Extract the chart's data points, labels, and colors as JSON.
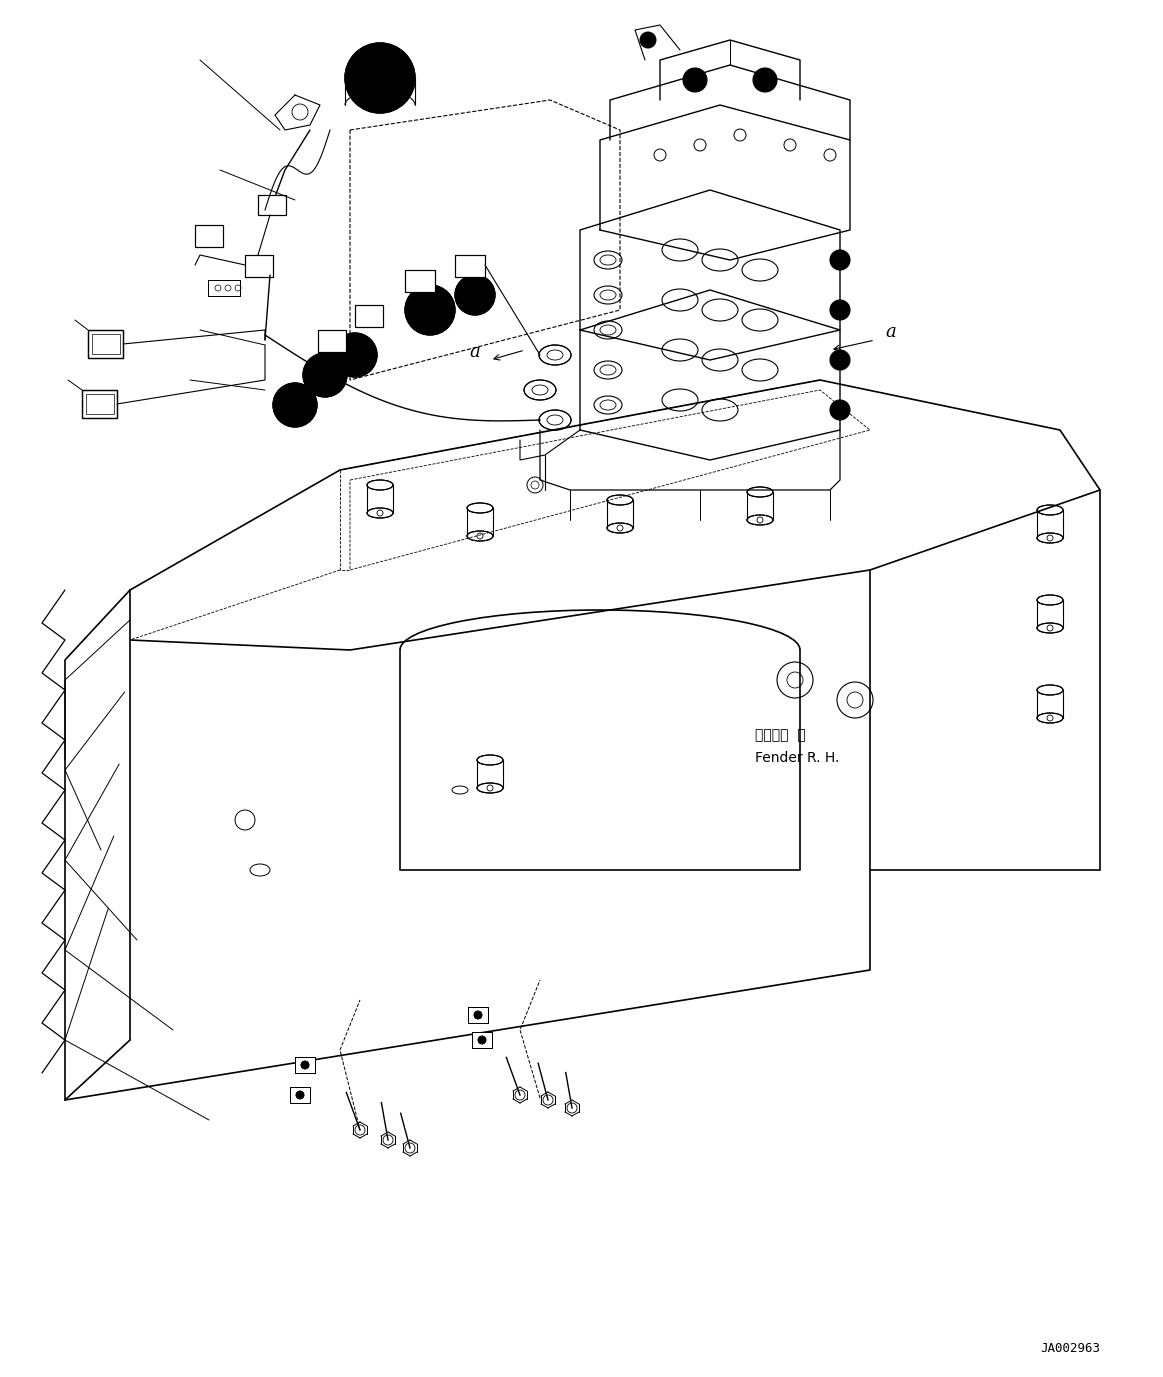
{
  "bg_color": "#ffffff",
  "line_color": "#000000",
  "fig_width": 11.63,
  "fig_height": 13.77,
  "dpi": 100,
  "ref_code": "JA002963",
  "fender_jp": "フェンダ  右",
  "fender_en": "Fender R. H."
}
